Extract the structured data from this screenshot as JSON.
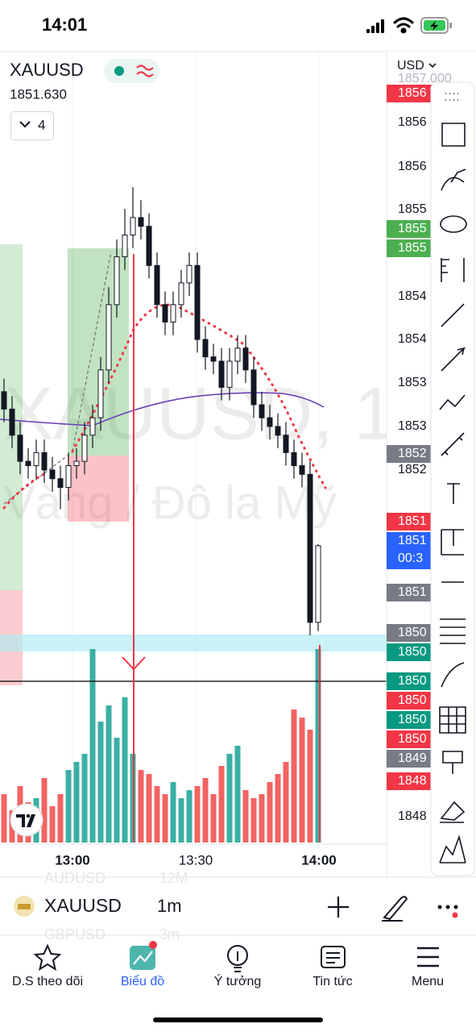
{
  "status_bar": {
    "time": "14:01"
  },
  "header": {
    "symbol": "XAUUSD",
    "price": "1851.630",
    "indicators": "4",
    "currency": "USD"
  },
  "watermark": {
    "line1": "XAUUSD, 1",
    "line2": "Vàng / Đô la Mỹ"
  },
  "chart": {
    "type": "candlestick",
    "ylim": [
      1848.22,
      1857.02
    ],
    "up_color": "#26a69a",
    "down_color": "#ef5350",
    "open": [
      1853.4,
      1853.2,
      1852.9,
      1852.6,
      1852.55,
      1852.7,
      1852.5,
      1852.4,
      1852.3,
      1852.55,
      1852.6,
      1852.9,
      1853.1,
      1853.65,
      1854.4,
      1854.95,
      1855.2,
      1855.4,
      1855.3,
      1854.85,
      1854.4,
      1854.2,
      1854.4,
      1854.65,
      1854.85,
      1854.0,
      1853.8,
      1853.75,
      1853.45,
      1853.75,
      1853.9,
      1853.65,
      1853.25,
      1853.1,
      1853.0,
      1852.9,
      1852.7,
      1852.55,
      1852.45,
      1850.75
    ],
    "high": [
      1853.55,
      1853.35,
      1853.05,
      1852.75,
      1852.85,
      1852.85,
      1852.65,
      1852.55,
      1852.7,
      1852.75,
      1853.05,
      1853.25,
      1853.8,
      1854.6,
      1855.15,
      1855.5,
      1855.75,
      1855.6,
      1855.45,
      1855.0,
      1854.55,
      1854.55,
      1854.8,
      1855.0,
      1855.0,
      1854.15,
      1853.95,
      1853.9,
      1853.9,
      1854.05,
      1854.05,
      1853.8,
      1853.4,
      1853.25,
      1853.15,
      1853.05,
      1852.85,
      1852.7,
      1852.6,
      1851.65
    ],
    "low": [
      1853.05,
      1852.75,
      1852.45,
      1852.4,
      1852.4,
      1852.35,
      1852.25,
      1852.05,
      1852.15,
      1852.4,
      1852.45,
      1852.75,
      1852.95,
      1853.5,
      1854.25,
      1854.8,
      1855.05,
      1855.15,
      1854.7,
      1854.25,
      1854.05,
      1854.05,
      1854.25,
      1854.5,
      1853.85,
      1853.65,
      1853.6,
      1853.3,
      1853.3,
      1853.6,
      1853.5,
      1853.1,
      1852.95,
      1852.85,
      1852.75,
      1852.55,
      1852.4,
      1852.3,
      1850.6,
      1850.65
    ],
    "close": [
      1853.2,
      1852.9,
      1852.6,
      1852.55,
      1852.7,
      1852.5,
      1852.4,
      1852.3,
      1852.55,
      1852.6,
      1852.9,
      1853.1,
      1853.65,
      1854.4,
      1854.95,
      1855.2,
      1855.4,
      1855.3,
      1854.85,
      1854.4,
      1854.2,
      1854.4,
      1854.65,
      1854.85,
      1854.0,
      1853.8,
      1853.75,
      1853.45,
      1853.75,
      1853.9,
      1853.65,
      1853.25,
      1853.1,
      1853.0,
      1852.9,
      1852.7,
      1852.55,
      1852.45,
      1850.75,
      1851.63
    ],
    "volume": [
      60,
      40,
      70,
      50,
      55,
      80,
      45,
      60,
      90,
      100,
      110,
      240,
      150,
      170,
      130,
      180,
      110,
      90,
      85,
      70,
      60,
      75,
      55,
      65,
      70,
      80,
      60,
      95,
      110,
      120,
      65,
      55,
      60,
      75,
      85,
      100,
      165,
      155,
      140,
      240
    ],
    "time_labels": [
      "13:00",
      "13:30",
      "14:00"
    ],
    "price_axis": [
      {
        "label": "1857.000",
        "color": null
      },
      {
        "label": "1856",
        "color": "#f23645"
      },
      {
        "label": "1856",
        "color": null
      },
      {
        "label": "1856",
        "color": null
      },
      {
        "label": "1855",
        "color": null
      },
      {
        "label": "1855",
        "color": "#4caf50"
      },
      {
        "label": "1855",
        "color": "#4caf50"
      },
      {
        "label": "1854",
        "color": null
      },
      {
        "label": "1854",
        "color": null
      },
      {
        "label": "1853",
        "color": null
      },
      {
        "label": "1853",
        "color": null
      },
      {
        "label": "1852",
        "color": "#787b86"
      },
      {
        "label": "1852",
        "color": null
      },
      {
        "label": "1851",
        "color": "#f23645"
      },
      {
        "label": "1851",
        "color": "#2962ff"
      },
      {
        "label": "1851",
        "color": "#787b86"
      },
      {
        "label": "1850",
        "color": "#787b86"
      },
      {
        "label": "1850",
        "color": "#089981"
      },
      {
        "label": "1850",
        "color": "#089981"
      },
      {
        "label": "1850",
        "color": "#f23645"
      },
      {
        "label": "1850",
        "color": "#089981"
      },
      {
        "label": "1850",
        "color": "#f23645"
      },
      {
        "label": "1849",
        "color": "#787b86"
      },
      {
        "label": "1848",
        "color": "#f23645"
      },
      {
        "label": "1848",
        "color": null
      }
    ],
    "countdown": "00:3"
  },
  "toolbar": {
    "symbol": "XAUUSD",
    "interval": "1m",
    "ghost_symbol_1": "AUDUSD",
    "ghost_interval_1": "12M",
    "ghost_symbol_2": "GBPUSD",
    "ghost_interval_2": "3m"
  },
  "nav": [
    "D.S theo dõi",
    "Biểu đồ",
    "Ý tưởng",
    "Tin tức",
    "Menu"
  ]
}
